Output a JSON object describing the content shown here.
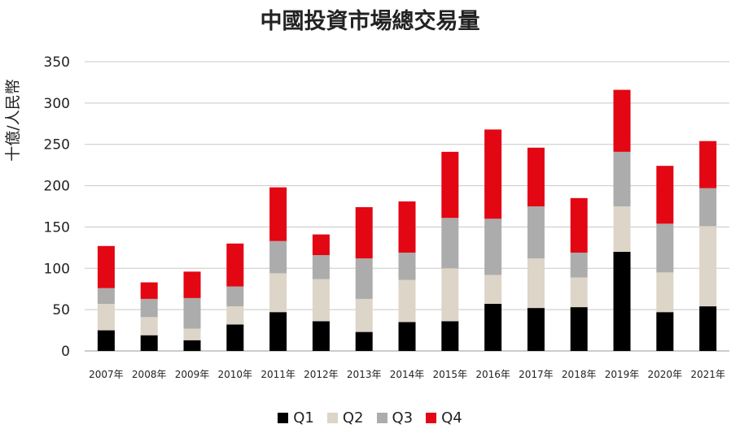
{
  "chart_data": {
    "type": "bar",
    "stacked": true,
    "title": "中國投資市場總交易量",
    "xlabel": "",
    "ylabel": "十億/人民幣",
    "ylim": [
      0,
      350
    ],
    "yticks": [
      0,
      50,
      100,
      150,
      200,
      250,
      300,
      350
    ],
    "grid": true,
    "legend_position": "bottom",
    "categories": [
      "2007年",
      "2008年",
      "2009年",
      "2010年",
      "2011年",
      "2012年",
      "2013年",
      "2014年",
      "2015年",
      "2016年",
      "2017年",
      "2018年",
      "2019年",
      "2020年",
      "2021年"
    ],
    "series": [
      {
        "name": "Q1",
        "color": "#000000",
        "values": [
          25,
          19,
          13,
          32,
          47,
          36,
          23,
          35,
          36,
          57,
          52,
          53,
          120,
          47,
          54
        ]
      },
      {
        "name": "Q2",
        "color": "#dcd5c8",
        "values": [
          32,
          22,
          14,
          22,
          47,
          51,
          40,
          51,
          64,
          35,
          60,
          36,
          55,
          48,
          97
        ]
      },
      {
        "name": "Q3",
        "color": "#acacac",
        "values": [
          19,
          22,
          37,
          24,
          39,
          29,
          49,
          33,
          61,
          68,
          63,
          30,
          66,
          59,
          46
        ]
      },
      {
        "name": "Q4",
        "color": "#e30613",
        "values": [
          51,
          20,
          32,
          52,
          65,
          25,
          62,
          62,
          80,
          108,
          71,
          66,
          75,
          70,
          57
        ]
      }
    ]
  }
}
